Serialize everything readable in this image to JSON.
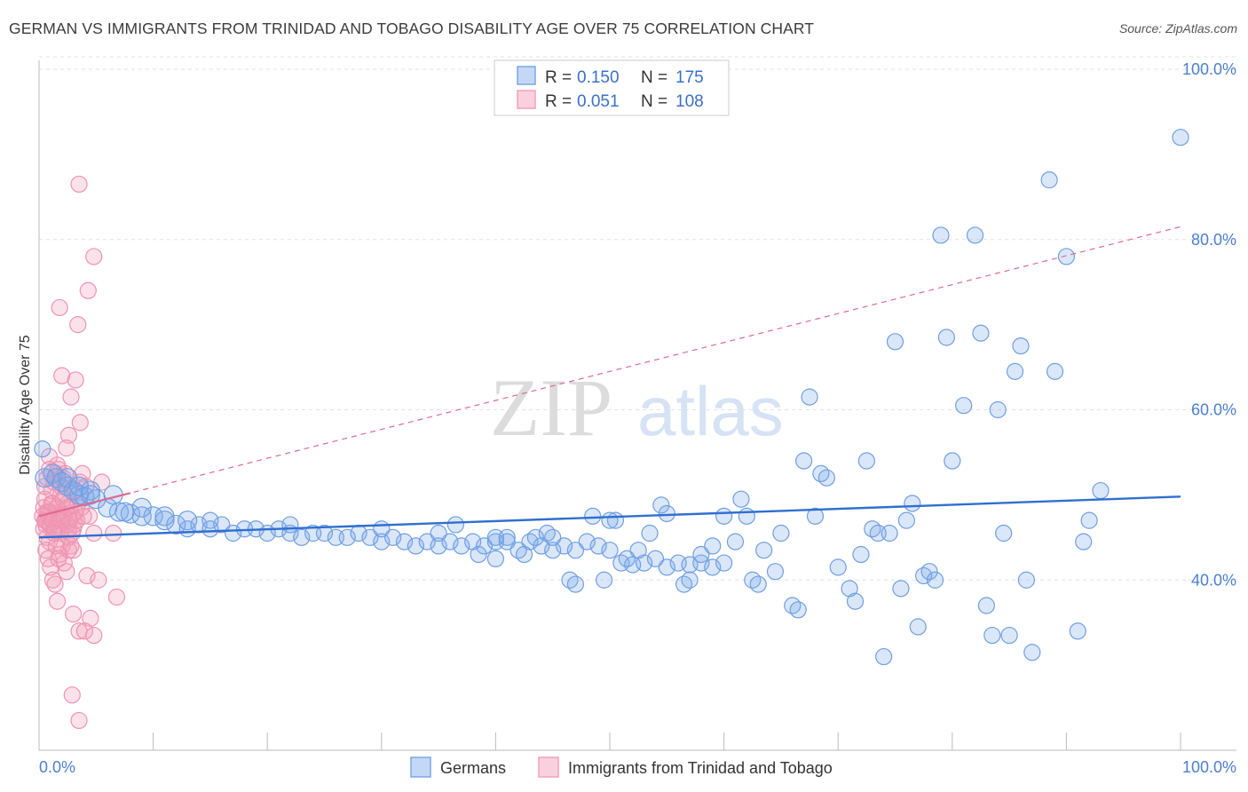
{
  "title": "GERMAN VS IMMIGRANTS FROM TRINIDAD AND TOBAGO DISABILITY AGE OVER 75 CORRELATION CHART",
  "source": "Source: ZipAtlas.com",
  "watermark": {
    "zip": "ZIP",
    "atlas": "atlas"
  },
  "colors": {
    "blue": "#7aa8e8",
    "blue_line": "#2f6fd0",
    "pink": "#f3a0bb",
    "pink_line": "#e06a90"
  },
  "legend": {
    "r_label": "R =",
    "n_label": "N =",
    "rows": [
      {
        "r": "0.150",
        "n": "175"
      },
      {
        "r": "0.051",
        "n": "108"
      }
    ]
  },
  "bottom_legend": [
    "Germans",
    "Immigrants from Trinidad and Tobago"
  ],
  "chart_data": {
    "type": "scatter",
    "title": "GERMAN VS IMMIGRANTS FROM TRINIDAD AND TOBAGO DISABILITY AGE OVER 75 CORRELATION CHART",
    "xlabel": "",
    "ylabel": "Disability Age Over 75",
    "xlim": [
      0,
      100
    ],
    "ylim": [
      20,
      100
    ],
    "x_tick_labels": [
      "0.0%",
      "100.0%"
    ],
    "y_ticks": [
      40,
      60,
      80,
      100
    ],
    "y_tick_labels": [
      "40.0%",
      "60.0%",
      "80.0%",
      "100.0%"
    ],
    "grid": true,
    "legend_position": "top-center",
    "series": [
      {
        "name": "Germans",
        "color": "#7aa8e8",
        "trend": {
          "x": [
            0,
            100
          ],
          "y": [
            45.0,
            49.8
          ],
          "style": "solid"
        },
        "points": [
          [
            0.3,
            55.4
          ],
          [
            0.5,
            52.0
          ],
          [
            1.2,
            52.5
          ],
          [
            1.5,
            52.0
          ],
          [
            2.0,
            51.5
          ],
          [
            2.5,
            51.0
          ],
          [
            3.0,
            50.5
          ],
          [
            3.5,
            50.0
          ],
          [
            4.0,
            49.8
          ],
          [
            4.5,
            50.0
          ],
          [
            5.0,
            49.5
          ],
          [
            6.0,
            48.5
          ],
          [
            7.0,
            48.0
          ],
          [
            8.0,
            47.8
          ],
          [
            9.0,
            47.5
          ],
          [
            10.0,
            47.5
          ],
          [
            11.0,
            47.0
          ],
          [
            12.0,
            46.5
          ],
          [
            13.0,
            46.0
          ],
          [
            14.0,
            46.5
          ],
          [
            15.0,
            46.0
          ],
          [
            16.0,
            46.5
          ],
          [
            17.0,
            45.5
          ],
          [
            18.0,
            46.0
          ],
          [
            19.0,
            46.0
          ],
          [
            20.0,
            45.5
          ],
          [
            21.0,
            46.0
          ],
          [
            22.0,
            45.5
          ],
          [
            23.0,
            45.0
          ],
          [
            24.0,
            45.5
          ],
          [
            25.0,
            45.5
          ],
          [
            26.0,
            45.0
          ],
          [
            27.0,
            45.0
          ],
          [
            28.0,
            45.5
          ],
          [
            29.0,
            45.0
          ],
          [
            30.0,
            44.5
          ],
          [
            31.0,
            45.0
          ],
          [
            32.0,
            44.5
          ],
          [
            33.0,
            44.0
          ],
          [
            34.0,
            44.5
          ],
          [
            35.0,
            44.0
          ],
          [
            36.0,
            44.5
          ],
          [
            37.0,
            44.0
          ],
          [
            38.0,
            44.5
          ],
          [
            39.0,
            44.0
          ],
          [
            40.0,
            44.5
          ],
          [
            41.0,
            44.5
          ],
          [
            42.0,
            43.5
          ],
          [
            43.0,
            44.5
          ],
          [
            44.0,
            44.0
          ],
          [
            45.0,
            43.5
          ],
          [
            46.0,
            44.0
          ],
          [
            47.0,
            43.5
          ],
          [
            48.0,
            44.5
          ],
          [
            49.0,
            44.0
          ],
          [
            50.0,
            43.5
          ],
          [
            51.0,
            42.0
          ],
          [
            52.0,
            41.8
          ],
          [
            53.0,
            42.0
          ],
          [
            54.0,
            42.5
          ],
          [
            55.0,
            41.5
          ],
          [
            56.0,
            42.0
          ],
          [
            57.0,
            41.8
          ],
          [
            58.0,
            42.0
          ],
          [
            59.0,
            41.5
          ],
          [
            60.0,
            42.0
          ],
          [
            9.0,
            48.5
          ],
          [
            11.0,
            47.5
          ],
          [
            13.0,
            47.0
          ],
          [
            15.0,
            47.0
          ],
          [
            22.0,
            46.5
          ],
          [
            30.0,
            46.0
          ],
          [
            35.0,
            45.5
          ],
          [
            40.0,
            45.0
          ],
          [
            45.0,
            45.0
          ],
          [
            2.5,
            52.0
          ],
          [
            3.5,
            51.0
          ],
          [
            4.5,
            50.5
          ],
          [
            6.5,
            50.0
          ],
          [
            7.5,
            48.0
          ],
          [
            36.5,
            46.5
          ],
          [
            38.5,
            43.0
          ],
          [
            40.0,
            42.5
          ],
          [
            43.5,
            45.0
          ],
          [
            44.5,
            45.5
          ],
          [
            46.5,
            40.0
          ],
          [
            47.0,
            39.5
          ],
          [
            48.5,
            47.5
          ],
          [
            50.5,
            47.0
          ],
          [
            51.5,
            42.5
          ],
          [
            52.5,
            43.5
          ],
          [
            53.5,
            45.5
          ],
          [
            54.5,
            48.8
          ],
          [
            55.0,
            47.8
          ],
          [
            56.5,
            39.5
          ],
          [
            57.0,
            40.0
          ],
          [
            58.0,
            43.0
          ],
          [
            59.0,
            44.0
          ],
          [
            60.0,
            47.5
          ],
          [
            61.0,
            44.5
          ],
          [
            61.5,
            49.5
          ],
          [
            62.0,
            47.5
          ],
          [
            62.5,
            40.0
          ],
          [
            63.0,
            39.5
          ],
          [
            63.5,
            43.5
          ],
          [
            64.5,
            41.0
          ],
          [
            65.0,
            45.5
          ],
          [
            66.0,
            37.0
          ],
          [
            66.5,
            36.5
          ],
          [
            67.0,
            54.0
          ],
          [
            67.5,
            61.5
          ],
          [
            68.0,
            47.5
          ],
          [
            68.5,
            52.5
          ],
          [
            69.0,
            52.0
          ],
          [
            70.0,
            41.5
          ],
          [
            71.0,
            39.0
          ],
          [
            71.5,
            37.5
          ],
          [
            72.0,
            43.0
          ],
          [
            72.5,
            54.0
          ],
          [
            73.0,
            46.0
          ],
          [
            73.5,
            45.5
          ],
          [
            74.0,
            31.0
          ],
          [
            74.5,
            45.5
          ],
          [
            75.0,
            68.0
          ],
          [
            75.5,
            39.0
          ],
          [
            76.0,
            47.0
          ],
          [
            76.5,
            49.0
          ],
          [
            77.0,
            34.5
          ],
          [
            77.5,
            40.5
          ],
          [
            78.0,
            41.0
          ],
          [
            78.5,
            40.0
          ],
          [
            79.0,
            80.5
          ],
          [
            79.5,
            68.5
          ],
          [
            80.0,
            54.0
          ],
          [
            81.0,
            60.5
          ],
          [
            82.0,
            80.5
          ],
          [
            82.5,
            69.0
          ],
          [
            83.0,
            37.0
          ],
          [
            83.5,
            33.5
          ],
          [
            84.0,
            60.0
          ],
          [
            84.5,
            45.5
          ],
          [
            85.0,
            33.5
          ],
          [
            85.5,
            64.5
          ],
          [
            86.0,
            67.5
          ],
          [
            86.5,
            40.0
          ],
          [
            87.0,
            31.5
          ],
          [
            88.5,
            87.0
          ],
          [
            89.0,
            64.5
          ],
          [
            90.0,
            78.0
          ],
          [
            91.0,
            34.0
          ],
          [
            91.5,
            44.5
          ],
          [
            92.0,
            47.0
          ],
          [
            93.0,
            50.5
          ],
          [
            100.0,
            92.0
          ],
          [
            41.0,
            45.0
          ],
          [
            42.5,
            43.0
          ],
          [
            49.5,
            40.0
          ],
          [
            50.0,
            47.0
          ]
        ]
      },
      {
        "name": "Immigrants from Trinidad and Tobago",
        "color": "#f3a0bb",
        "trend": {
          "x": [
            0,
            100
          ],
          "y": [
            47.5,
            81.5
          ],
          "style": "dashed"
        },
        "points": [
          [
            0.3,
            47.5
          ],
          [
            0.4,
            48.5
          ],
          [
            0.5,
            47.0
          ],
          [
            0.6,
            46.5
          ],
          [
            0.7,
            48.0
          ],
          [
            0.8,
            47.5
          ],
          [
            0.9,
            46.5
          ],
          [
            1.0,
            48.0
          ],
          [
            1.1,
            47.0
          ],
          [
            1.2,
            49.0
          ],
          [
            1.3,
            46.0
          ],
          [
            1.4,
            47.5
          ],
          [
            1.5,
            48.5
          ],
          [
            1.6,
            46.5
          ],
          [
            1.7,
            47.0
          ],
          [
            1.8,
            45.5
          ],
          [
            1.9,
            48.0
          ],
          [
            2.0,
            47.0
          ],
          [
            0.5,
            49.5
          ],
          [
            0.7,
            45.0
          ],
          [
            0.9,
            44.5
          ],
          [
            1.1,
            50.5
          ],
          [
            1.3,
            51.5
          ],
          [
            1.5,
            52.5
          ],
          [
            1.7,
            53.0
          ],
          [
            1.9,
            51.0
          ],
          [
            2.1,
            52.0
          ],
          [
            2.3,
            50.0
          ],
          [
            2.5,
            49.0
          ],
          [
            2.7,
            48.5
          ],
          [
            2.9,
            47.5
          ],
          [
            3.1,
            46.5
          ],
          [
            0.6,
            43.5
          ],
          [
            0.8,
            42.5
          ],
          [
            1.0,
            41.5
          ],
          [
            1.2,
            40.0
          ],
          [
            1.4,
            39.5
          ],
          [
            1.6,
            37.5
          ],
          [
            1.8,
            43.0
          ],
          [
            2.0,
            44.0
          ],
          [
            2.2,
            42.0
          ],
          [
            2.4,
            41.0
          ],
          [
            2.6,
            45.0
          ],
          [
            2.8,
            44.0
          ],
          [
            3.0,
            46.0
          ],
          [
            3.2,
            48.0
          ],
          [
            3.4,
            49.0
          ],
          [
            3.6,
            51.5
          ],
          [
            1.8,
            72.0
          ],
          [
            3.5,
            86.5
          ],
          [
            4.8,
            78.0
          ],
          [
            4.3,
            74.0
          ],
          [
            3.4,
            70.0
          ],
          [
            2.0,
            64.0
          ],
          [
            3.2,
            63.5
          ],
          [
            2.8,
            61.5
          ],
          [
            3.6,
            58.5
          ],
          [
            2.6,
            57.0
          ],
          [
            2.4,
            55.5
          ],
          [
            0.9,
            54.5
          ],
          [
            1.6,
            53.5
          ],
          [
            3.8,
            52.5
          ],
          [
            5.5,
            51.5
          ],
          [
            4.4,
            47.5
          ],
          [
            4.8,
            45.5
          ],
          [
            3.0,
            43.5
          ],
          [
            2.6,
            43.5
          ],
          [
            4.2,
            40.5
          ],
          [
            5.2,
            40.0
          ],
          [
            6.8,
            38.0
          ],
          [
            3.0,
            36.0
          ],
          [
            4.5,
            35.5
          ],
          [
            3.5,
            34.0
          ],
          [
            4.0,
            34.0
          ],
          [
            4.8,
            33.5
          ],
          [
            2.9,
            26.5
          ],
          [
            3.5,
            23.5
          ],
          [
            6.5,
            45.5
          ],
          [
            0.4,
            46.0
          ],
          [
            0.6,
            47.0
          ],
          [
            0.8,
            48.0
          ],
          [
            1.0,
            46.5
          ],
          [
            1.2,
            47.0
          ],
          [
            1.4,
            46.0
          ],
          [
            1.6,
            48.5
          ],
          [
            1.8,
            47.0
          ],
          [
            2.0,
            46.0
          ],
          [
            2.2,
            47.5
          ],
          [
            2.4,
            48.5
          ],
          [
            2.6,
            46.0
          ],
          [
            0.5,
            51.0
          ],
          [
            0.7,
            52.0
          ],
          [
            0.9,
            53.0
          ],
          [
            1.1,
            49.0
          ],
          [
            1.3,
            45.5
          ],
          [
            1.5,
            44.0
          ],
          [
            1.7,
            42.5
          ],
          [
            1.9,
            50.0
          ],
          [
            2.1,
            49.5
          ],
          [
            2.3,
            52.5
          ],
          [
            2.5,
            46.5
          ],
          [
            2.7,
            47.0
          ],
          [
            2.9,
            45.5
          ],
          [
            3.1,
            50.5
          ],
          [
            3.3,
            47.0
          ],
          [
            3.7,
            48.5
          ],
          [
            3.9,
            47.5
          ],
          [
            4.1,
            51.0
          ]
        ]
      }
    ]
  }
}
